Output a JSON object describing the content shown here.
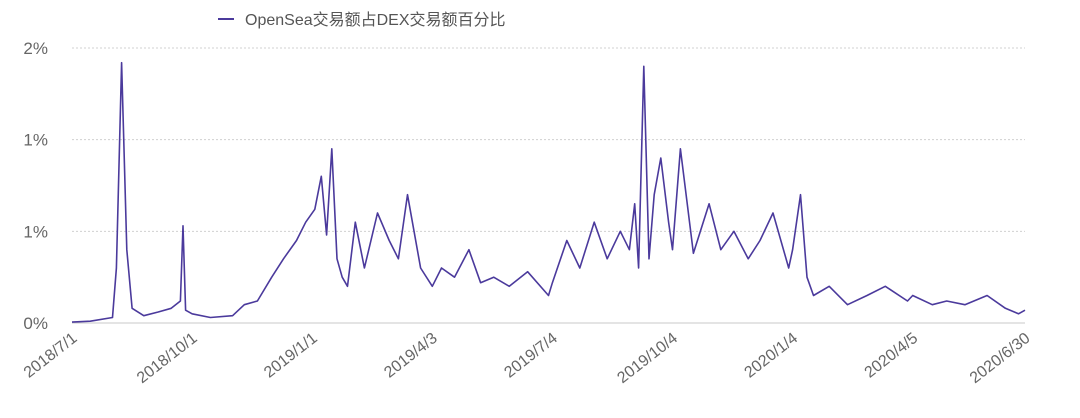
{
  "chart_data": {
    "type": "line",
    "title": "",
    "xlabel": "",
    "ylabel": "",
    "x_ticks": [
      "2018/7/1",
      "2018/10/1",
      "2019/1/1",
      "2019/4/3",
      "2019/7/4",
      "2019/10/4",
      "2020/1/4",
      "2020/4/5",
      "2020/6/30"
    ],
    "y_ticks": [
      "0%",
      "1%",
      "1%",
      "2%"
    ],
    "ylim": [
      0,
      1.5
    ],
    "grid": true,
    "legend_position": "top",
    "colors": {
      "line": "#4b3a9c",
      "grid": "#d0d0d0",
      "axis": "#c8c8c8"
    },
    "series": [
      {
        "name": "OpenSea交易额占DEX交易额百分比",
        "x": [
          "2018/7/1",
          "2018/7/15",
          "2018/8/1",
          "2018/8/4",
          "2018/8/8",
          "2018/8/12",
          "2018/8/16",
          "2018/8/25",
          "2018/9/5",
          "2018/9/15",
          "2018/9/22",
          "2018/9/24",
          "2018/9/26",
          "2018/10/1",
          "2018/10/15",
          "2018/11/1",
          "2018/11/10",
          "2018/11/20",
          "2018/12/1",
          "2018/12/10",
          "2018/12/20",
          "2018/12/27",
          "2019/1/3",
          "2019/1/8",
          "2019/1/12",
          "2019/1/16",
          "2019/1/20",
          "2019/1/24",
          "2019/1/28",
          "2019/2/3",
          "2019/2/10",
          "2019/2/20",
          "2019/3/1",
          "2019/3/8",
          "2019/3/15",
          "2019/3/25",
          "2019/4/3",
          "2019/4/10",
          "2019/4/20",
          "2019/5/1",
          "2019/5/10",
          "2019/5/20",
          "2019/6/1",
          "2019/6/15",
          "2019/7/1",
          "2019/7/4",
          "2019/7/15",
          "2019/7/25",
          "2019/8/5",
          "2019/8/15",
          "2019/8/25",
          "2019/9/1",
          "2019/9/5",
          "2019/9/8",
          "2019/9/12",
          "2019/9/16",
          "2019/9/20",
          "2019/9/25",
          "2019/10/1",
          "2019/10/4",
          "2019/10/10",
          "2019/10/20",
          "2019/11/1",
          "2019/11/10",
          "2019/11/20",
          "2019/12/1",
          "2019/12/10",
          "2019/12/20",
          "2020/1/1",
          "2020/1/4",
          "2020/1/10",
          "2020/1/15",
          "2020/1/20",
          "2020/2/1",
          "2020/2/15",
          "2020/3/1",
          "2020/3/15",
          "2020/4/1",
          "2020/4/5",
          "2020/4/20",
          "2020/5/1",
          "2020/5/15",
          "2020/6/1",
          "2020/6/15",
          "2020/6/25",
          "2020/6/30"
        ],
        "values": [
          0.005,
          0.01,
          0.03,
          0.3,
          1.42,
          0.4,
          0.08,
          0.04,
          0.06,
          0.08,
          0.12,
          0.53,
          0.07,
          0.05,
          0.03,
          0.04,
          0.1,
          0.12,
          0.25,
          0.35,
          0.45,
          0.55,
          0.62,
          0.8,
          0.48,
          0.95,
          0.35,
          0.25,
          0.2,
          0.55,
          0.3,
          0.6,
          0.45,
          0.35,
          0.7,
          0.3,
          0.2,
          0.3,
          0.25,
          0.4,
          0.22,
          0.25,
          0.2,
          0.28,
          0.15,
          0.22,
          0.45,
          0.3,
          0.55,
          0.35,
          0.5,
          0.4,
          0.65,
          0.3,
          1.4,
          0.35,
          0.7,
          0.9,
          0.55,
          0.4,
          0.95,
          0.38,
          0.65,
          0.4,
          0.5,
          0.35,
          0.45,
          0.6,
          0.3,
          0.4,
          0.7,
          0.25,
          0.15,
          0.2,
          0.1,
          0.15,
          0.2,
          0.12,
          0.15,
          0.1,
          0.12,
          0.1,
          0.15,
          0.08,
          0.05,
          0.07
        ]
      }
    ]
  }
}
